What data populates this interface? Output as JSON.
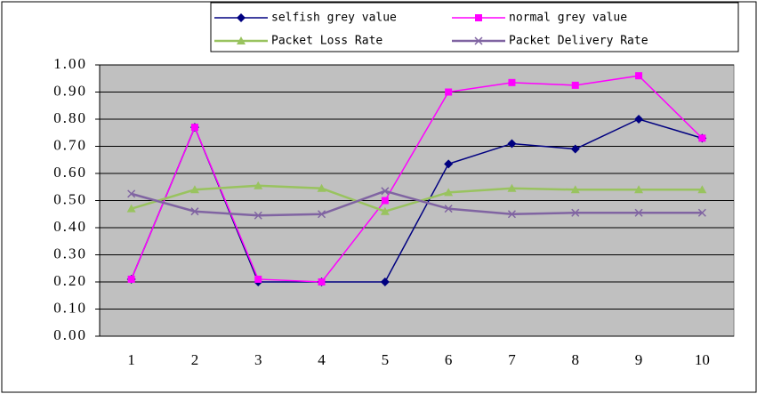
{
  "chart_data": {
    "type": "line",
    "categories": [
      "1",
      "2",
      "3",
      "4",
      "5",
      "6",
      "7",
      "8",
      "9",
      "10"
    ],
    "series": [
      {
        "name": "selfish grey value",
        "color": "#000080",
        "marker": "diamond",
        "values": [
          0.21,
          0.77,
          0.2,
          0.2,
          0.2,
          0.635,
          0.71,
          0.69,
          0.8,
          0.73
        ]
      },
      {
        "name": "normal grey value",
        "color": "#ff00ff",
        "marker": "square",
        "values": [
          0.21,
          0.77,
          0.21,
          0.2,
          0.5,
          0.9,
          0.935,
          0.925,
          0.96,
          0.73
        ]
      },
      {
        "name": "Packet Loss Rate",
        "color": "#99c35f",
        "marker": "triangle",
        "values": [
          0.47,
          0.54,
          0.555,
          0.545,
          0.46,
          0.53,
          0.545,
          0.54,
          0.54,
          0.54
        ]
      },
      {
        "name": "Packet Delivery Rate",
        "color": "#8064a2",
        "marker": "x",
        "values": [
          0.525,
          0.46,
          0.445,
          0.45,
          0.535,
          0.47,
          0.45,
          0.455,
          0.455,
          0.455
        ]
      }
    ],
    "ylim": [
      0,
      1
    ],
    "yticks": [
      {
        "value": 0,
        "label": "0.00"
      },
      {
        "value": 0.1,
        "label": "0.10"
      },
      {
        "value": 0.2,
        "label": "0.20"
      },
      {
        "value": 0.3,
        "label": "0.30"
      },
      {
        "value": 0.4,
        "label": "0.40"
      },
      {
        "value": 0.5,
        "label": "0.50"
      },
      {
        "value": 0.6,
        "label": "0.60"
      },
      {
        "value": 0.7,
        "label": "0.70"
      },
      {
        "value": 0.8,
        "label": "0.80"
      },
      {
        "value": 0.9,
        "label": "0.90"
      },
      {
        "value": 1,
        "label": "1.00"
      }
    ],
    "grid": true,
    "legend": "top"
  }
}
